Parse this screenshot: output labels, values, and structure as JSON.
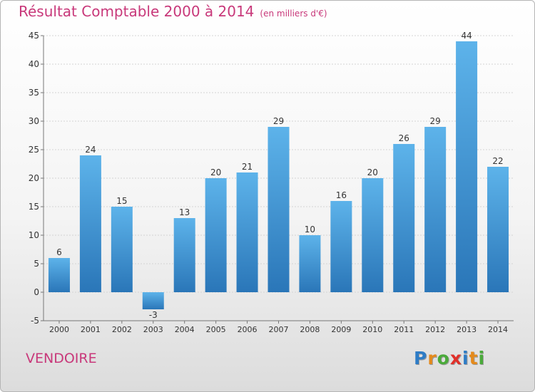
{
  "chart_data": {
    "type": "bar",
    "title": "Résultat Comptable 2000 à 2014",
    "subtitle": "(en milliers d'€)",
    "categories": [
      "2000",
      "2001",
      "2002",
      "2003",
      "2004",
      "2005",
      "2006",
      "2007",
      "2008",
      "2009",
      "2010",
      "2011",
      "2012",
      "2013",
      "2014"
    ],
    "values": [
      6,
      24,
      15,
      -3,
      13,
      20,
      21,
      29,
      10,
      16,
      20,
      26,
      29,
      44,
      22
    ],
    "ylim": [
      -5,
      45
    ],
    "yticks": [
      -5,
      0,
      5,
      10,
      15,
      20,
      25,
      30,
      35,
      40,
      45
    ],
    "grid": true,
    "bar_color": "#4aa0e0"
  },
  "footer": {
    "place": "VENDOIRE",
    "logo": [
      "P",
      "r",
      "o",
      "x",
      "i",
      "t",
      "i"
    ]
  },
  "colors": {
    "title": "#c8387a",
    "logo": [
      "#2e7cc6",
      "#e48a1c",
      "#4aaa3a",
      "#e0302a",
      "#2e7cc6",
      "#e48a1c",
      "#4aaa3a"
    ]
  }
}
